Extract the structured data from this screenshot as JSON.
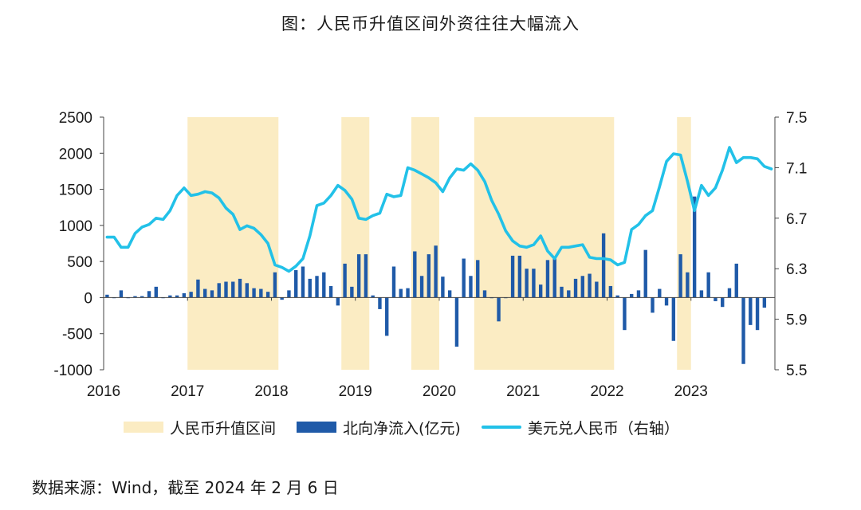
{
  "title": "图：人民币升值区间外资往往大幅流入",
  "source": "数据来源：Wind，截至 2024 年 2 月 6 日",
  "colors": {
    "band": "#fbecc3",
    "bar": "#1f5aa8",
    "line": "#22c1e8",
    "axis": "#444444"
  },
  "chart_data": {
    "type": "bar+line",
    "title": "图：人民币升值区间外资往往大幅流入",
    "x_tick_labels": [
      "2016",
      "2017",
      "2018",
      "2019",
      "2020",
      "2021",
      "2022",
      "2023"
    ],
    "x_range": [
      "2016-01",
      "2024-01"
    ],
    "left_axis": {
      "ticks": [
        "2500",
        "2000",
        "1500",
        "1000",
        "500",
        "0",
        "-500",
        "-1000"
      ],
      "ylim": [
        -1000,
        2500
      ]
    },
    "right_axis": {
      "ticks": [
        "7.5",
        "7.1",
        "6.7",
        "6.3",
        "5.9",
        "5.5"
      ],
      "ylim": [
        5.5,
        7.5
      ],
      "label": "右轴"
    },
    "legend": [
      "人民币升值区间",
      "北向净流入(亿元)",
      "美元兑人民币（右轴）"
    ],
    "legend_position": "bottom",
    "appreciation_bands": [
      [
        "2017-01",
        "2018-01"
      ],
      [
        "2018-11",
        "2019-02"
      ],
      [
        "2019-09",
        "2019-12"
      ],
      [
        "2020-06",
        "2022-01"
      ],
      [
        "2022-11",
        "2022-12"
      ]
    ],
    "series": [
      {
        "name": "北向净流入(亿元)",
        "type": "bar",
        "axis": "left",
        "values": [
          40,
          0,
          100,
          0,
          20,
          20,
          90,
          150,
          0,
          30,
          30,
          60,
          80,
          250,
          120,
          100,
          200,
          220,
          220,
          260,
          200,
          130,
          120,
          80,
          350,
          -30,
          100,
          380,
          430,
          260,
          300,
          350,
          160,
          -110,
          470,
          150,
          600,
          600,
          30,
          -160,
          -530,
          430,
          120,
          130,
          640,
          300,
          600,
          720,
          290,
          100,
          -680,
          540,
          300,
          520,
          100,
          0,
          -330,
          0,
          580,
          580,
          400,
          400,
          180,
          520,
          560,
          150,
          100,
          260,
          300,
          330,
          220,
          890,
          160,
          30,
          -450,
          50,
          100,
          660,
          -210,
          120,
          -110,
          -600,
          600,
          350,
          1400,
          100,
          350,
          -50,
          -130,
          130,
          470,
          -920,
          -380,
          -450,
          -140
        ],
        "x_start": "2016-01"
      },
      {
        "name": "美元兑人民币（右轴）",
        "type": "line",
        "axis": "right",
        "values": [
          6.55,
          6.55,
          6.47,
          6.47,
          6.58,
          6.63,
          6.65,
          6.7,
          6.69,
          6.76,
          6.88,
          6.94,
          6.88,
          6.89,
          6.91,
          6.9,
          6.86,
          6.78,
          6.73,
          6.61,
          6.64,
          6.62,
          6.57,
          6.5,
          6.33,
          6.31,
          6.28,
          6.32,
          6.38,
          6.56,
          6.8,
          6.82,
          6.88,
          6.96,
          6.92,
          6.85,
          6.7,
          6.69,
          6.72,
          6.74,
          6.89,
          6.87,
          6.88,
          7.1,
          7.08,
          7.05,
          7.02,
          6.98,
          6.91,
          7.02,
          7.09,
          7.08,
          7.13,
          7.08,
          6.99,
          6.84,
          6.73,
          6.6,
          6.52,
          6.48,
          6.47,
          6.49,
          6.56,
          6.44,
          6.38,
          6.47,
          6.47,
          6.48,
          6.49,
          6.39,
          6.38,
          6.38,
          6.37,
          6.33,
          6.35,
          6.61,
          6.65,
          6.72,
          6.76,
          6.95,
          7.15,
          7.21,
          7.2,
          6.99,
          6.76,
          6.96,
          6.88,
          6.94,
          7.08,
          7.26,
          7.14,
          7.18,
          7.18,
          7.17,
          7.11,
          7.09
        ],
        "x_start": "2016-01"
      }
    ]
  }
}
